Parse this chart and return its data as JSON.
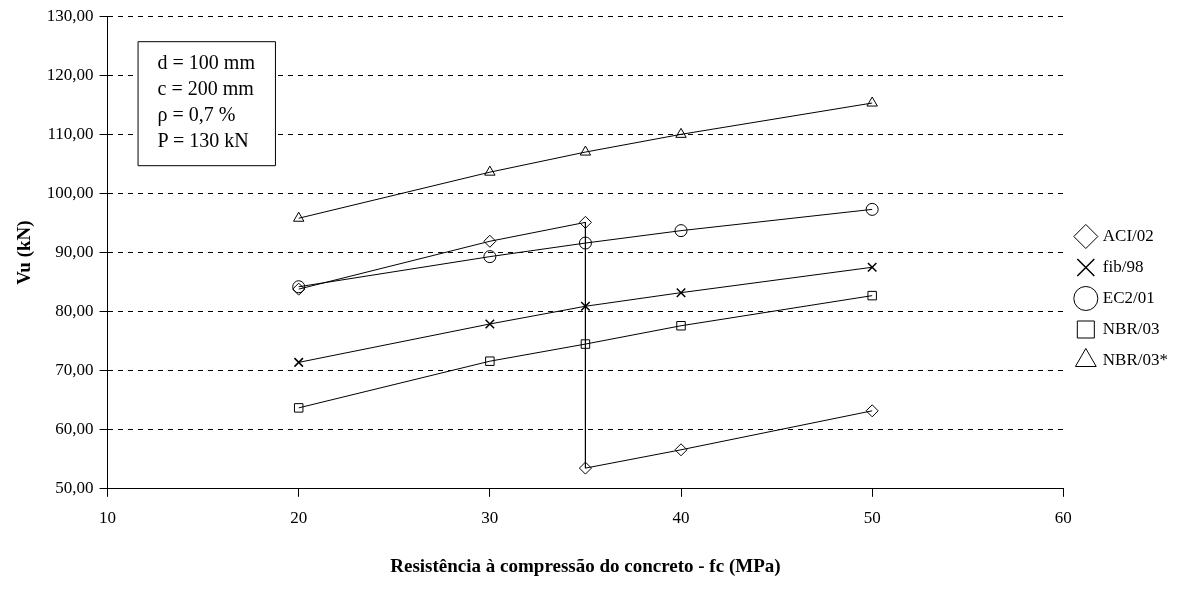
{
  "chart_data": {
    "type": "line",
    "xlabel": "Resistência à compressão do concreto - fc (MPa)",
    "ylabel": "Vu (kN)",
    "xlim": [
      10,
      60
    ],
    "xticks": [
      10,
      20,
      30,
      40,
      50,
      60
    ],
    "ylim": [
      50,
      130
    ],
    "yticks": [
      {
        "value": 50,
        "label": "50,00"
      },
      {
        "value": 60,
        "label": "60,00"
      },
      {
        "value": 70,
        "label": "70,00"
      },
      {
        "value": 80,
        "label": "80,00"
      },
      {
        "value": 90,
        "label": "90,00"
      },
      {
        "value": 100,
        "label": "100,00"
      },
      {
        "value": 110,
        "label": "110,00"
      },
      {
        "value": 120,
        "label": "120,00"
      },
      {
        "value": 130,
        "label": "130,00"
      }
    ],
    "grid": "y",
    "legend": "right",
    "line_style": "solid",
    "annotations": [
      "d = 100 mm",
      "c = 200 mm",
      "ρ = 0,7 %",
      "P = 130 kN"
    ],
    "series": [
      {
        "name": "ACI/02",
        "color": "#000000",
        "marker": "diamond",
        "x": [
          20,
          30,
          35,
          35,
          40,
          50
        ],
        "values": [
          83.8,
          91.9,
          95.1,
          53.5,
          56.6,
          63.2
        ]
      },
      {
        "name": "fib/98",
        "color": "#000000",
        "marker": "cross",
        "x": [
          20,
          30,
          35,
          40,
          50
        ],
        "values": [
          71.4,
          77.9,
          80.9,
          83.2,
          87.5
        ]
      },
      {
        "name": "EC2/01",
        "color": "#000000",
        "marker": "circle",
        "x": [
          20,
          30,
          35,
          40,
          50
        ],
        "values": [
          84.2,
          89.3,
          91.6,
          93.7,
          97.3
        ]
      },
      {
        "name": "NBR/03",
        "color": "#000000",
        "marker": "square",
        "x": [
          20,
          30,
          35,
          40,
          50
        ],
        "values": [
          63.7,
          71.6,
          74.5,
          77.6,
          82.7
        ]
      },
      {
        "name": "NBR/03*",
        "color": "#000000",
        "marker": "triangle",
        "x": [
          20,
          30,
          35,
          40,
          50
        ],
        "values": [
          95.8,
          103.6,
          107,
          110,
          115.3
        ]
      }
    ]
  }
}
